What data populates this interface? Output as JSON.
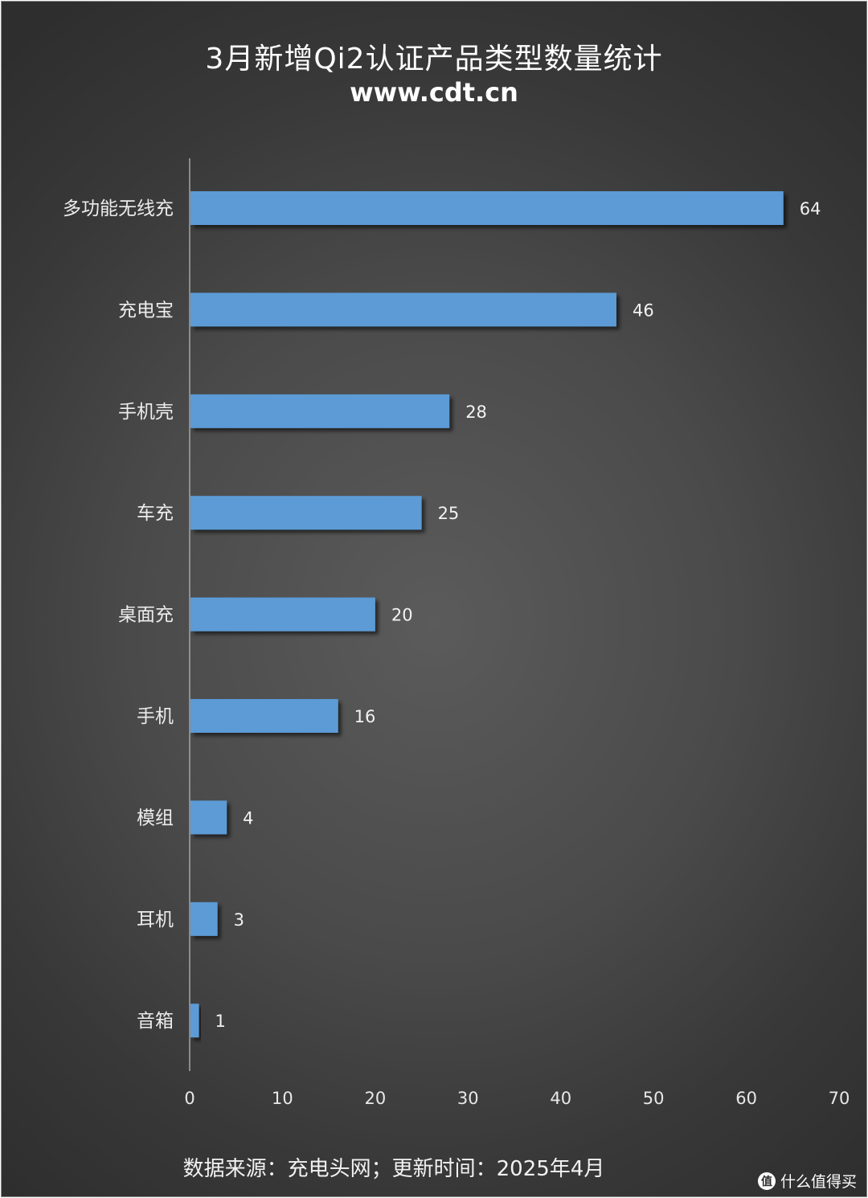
{
  "chart_data": {
    "type": "bar",
    "orientation": "horizontal",
    "title": "3月新增Qi2认证产品类型数量统计",
    "subtitle": "www.cdt.cn",
    "categories": [
      "多功能无线充",
      "充电宝",
      "手机壳",
      "车充",
      "桌面充",
      "手机",
      "模组",
      "耳机",
      "音箱"
    ],
    "values": [
      64,
      46,
      28,
      25,
      20,
      16,
      4,
      3,
      1
    ],
    "xlim": [
      0,
      70
    ],
    "xticks": [
      0,
      10,
      20,
      30,
      40,
      50,
      60,
      70
    ],
    "data_labels": true,
    "grid": false,
    "legend": "none",
    "bar_color": "#5b9bd5"
  },
  "footer": {
    "source": "数据来源：充电头网；更新时间：2025年4月"
  },
  "watermark": {
    "badge": "值",
    "text": "什么值得买"
  },
  "colors": {
    "background": "#474747",
    "bar": "#5b9bd5",
    "text": "#ffffff"
  }
}
